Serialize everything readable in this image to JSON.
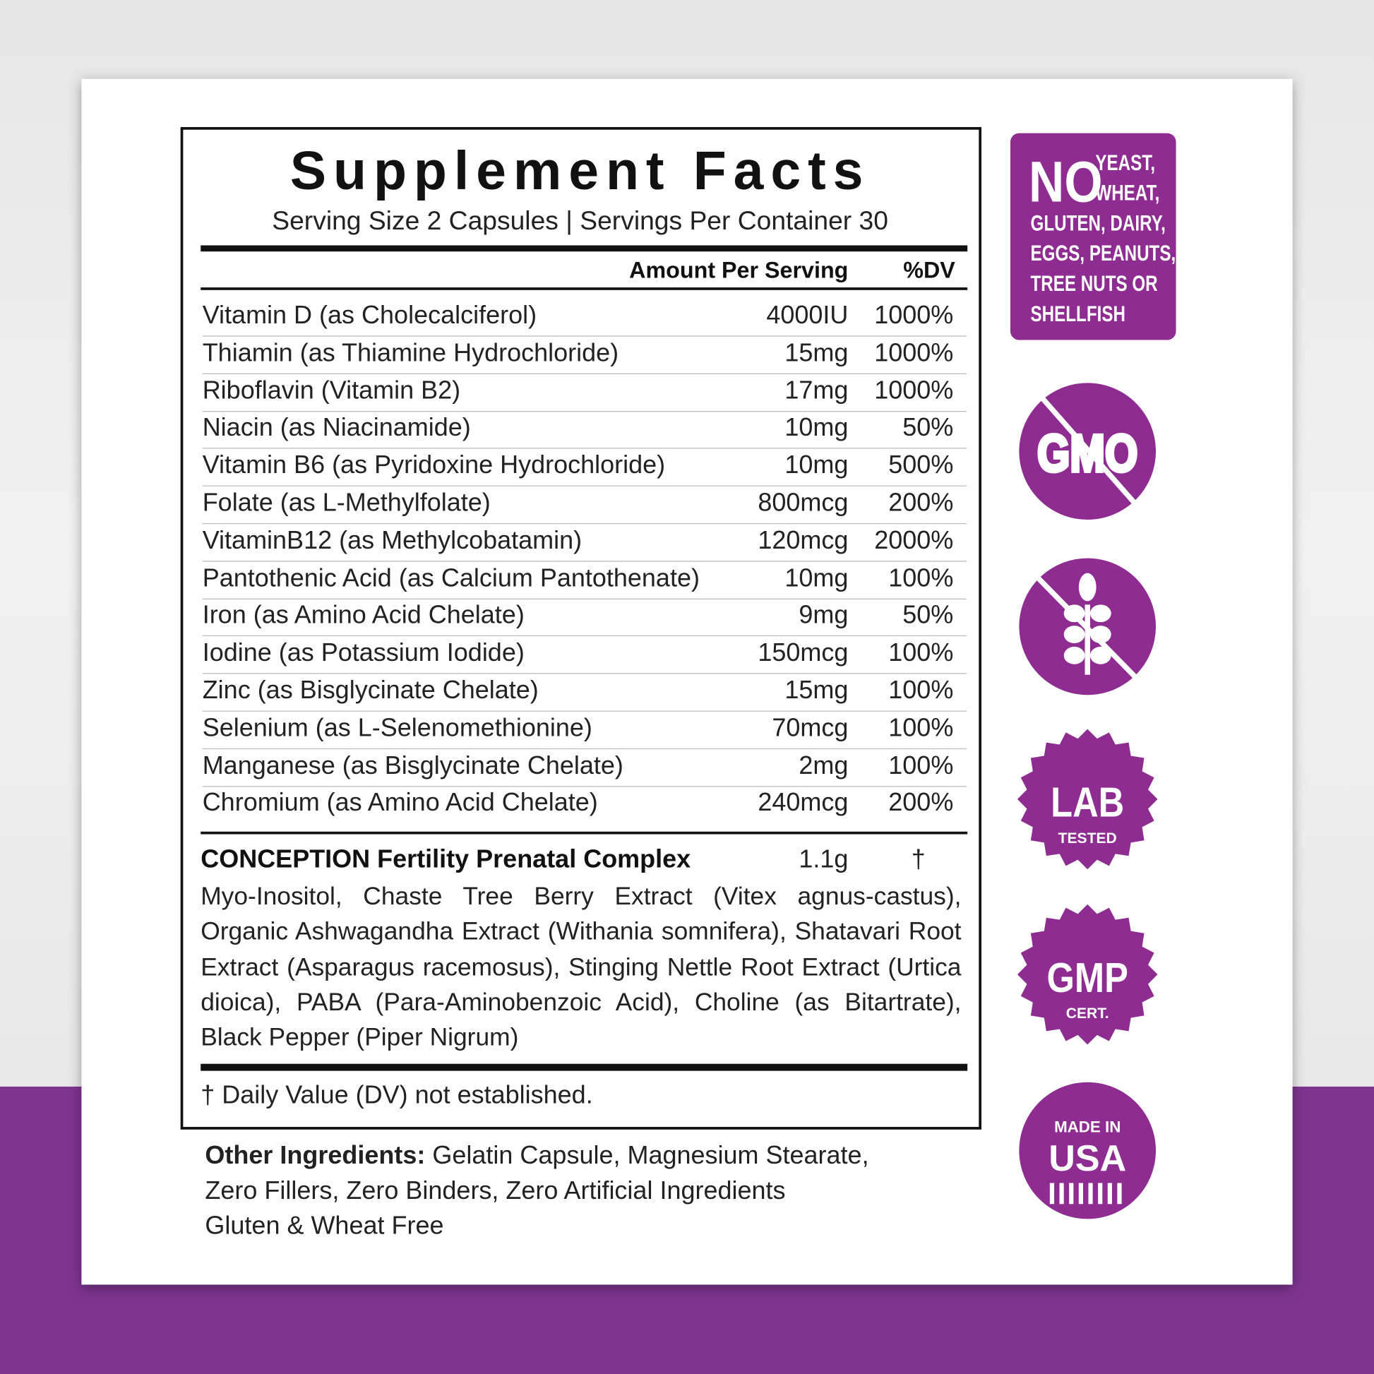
{
  "header": {
    "title": "Supplement Facts",
    "serving": "Serving Size 2 Capsules | Servings Per Container 30"
  },
  "columns": {
    "amount": "Amount Per Serving",
    "dv": "%DV"
  },
  "rows": [
    [
      "Vitamin D (as Cholecalciferol)",
      "4000IU",
      "1000%"
    ],
    [
      "Thiamin (as Thiamine Hydrochloride)",
      "15mg",
      "1000%"
    ],
    [
      "Riboflavin (Vitamin B2)",
      "17mg",
      "1000%"
    ],
    [
      "Niacin (as Niacinamide)",
      "10mg",
      "50%"
    ],
    [
      "Vitamin B6 (as Pyridoxine Hydrochloride)",
      "10mg",
      "500%"
    ],
    [
      "Folate (as L-Methylfolate)",
      "800mcg",
      "200%"
    ],
    [
      "VitaminB12 (as Methylcobatamin)",
      "120mcg",
      "2000%"
    ],
    [
      "Pantothenic Acid (as Calcium Pantothenate)",
      "10mg",
      "100%"
    ],
    [
      "Iron (as Amino Acid Chelate)",
      "9mg",
      "50%"
    ],
    [
      "Iodine (as Potassium Iodide)",
      "150mcg",
      "100%"
    ],
    [
      "Zinc (as Bisglycinate Chelate)",
      "15mg",
      "100%"
    ],
    [
      "Selenium (as L-Selenomethionine)",
      "70mcg",
      "100%"
    ],
    [
      "Manganese (as Bisglycinate Chelate)",
      "2mg",
      "100%"
    ],
    [
      "Chromium (as Amino Acid Chelate)",
      "240mcg",
      "200%"
    ]
  ],
  "blend": {
    "name": "CONCEPTION Fertility Prenatal Complex",
    "amount": "1.1g",
    "dv": "†",
    "ingredients": "Myo-Inositol, Chaste Tree Berry Extract (Vitex agnus-castus), Organic Ashwagandha Extract (Withania somnifera), Shatavari Root Extract (Asparagus racemosus), Stinging Nettle Root Extract (Urtica dioica), PABA (Para-Aminobenzoic Acid), Choline (as Bitartrate), Black Pepper (Piper Nigrum)"
  },
  "footnote": "† Daily Value (DV) not established.",
  "other_ingredients": {
    "label": "Other Ingredients:",
    "lines": [
      "Gelatin Capsule, Magnesium Stearate,",
      "Zero Fillers, Zero Binders, Zero Artificial Ingredients",
      "Gluten & Wheat Free"
    ]
  },
  "badges": {
    "no": "NO",
    "no_lines": [
      "YEAST,",
      "WHEAT,",
      "GLUTEN, DAIRY,",
      "EGGS, PEANUTS,",
      "TREE NUTS OR",
      "SHELLFISH"
    ],
    "gmo": "GMO",
    "lab": "LAB",
    "lab_sub": "TESTED",
    "gmp": "GMP",
    "gmp_sub": "CERT.",
    "made": "MADE IN",
    "usa": "USA"
  }
}
